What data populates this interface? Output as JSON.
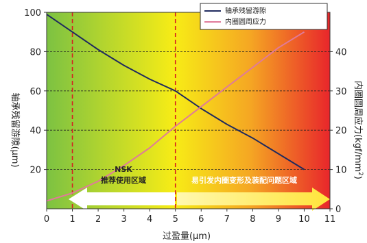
{
  "chart_data": {
    "type": "line",
    "xlabel": "过盈量(μm)",
    "ylabel_left": "轴承残留游隙(μm)",
    "ylabel_right_main": "内圈圆周应力(kgf/mm",
    "ylabel_right_sup": "2",
    "ylabel_right_close": ")",
    "xlim": [
      0,
      11
    ],
    "ylim_left": [
      0,
      100
    ],
    "ylim_right": [
      0,
      50
    ],
    "x_ticks": [
      0,
      1,
      2,
      3,
      4,
      5,
      6,
      7,
      8,
      9,
      10,
      11
    ],
    "y_left_ticks": [
      20,
      40,
      60,
      80,
      100
    ],
    "y_right_ticks": [
      0,
      10,
      20,
      30,
      40
    ],
    "grid": "dashed horizontal",
    "legend_position": "top-right",
    "series": [
      {
        "name": "轴承残留游隙",
        "axis": "left",
        "color": "#1f2a5e",
        "x": [
          0,
          1,
          2,
          3,
          4,
          5,
          6,
          7,
          8,
          9,
          10
        ],
        "y": [
          99,
          90,
          81,
          73,
          66,
          60,
          51,
          43,
          36,
          28,
          20
        ]
      },
      {
        "name": "内圈圆周应力",
        "axis": "right",
        "color": "#e07a9a",
        "x": [
          0,
          1,
          2,
          3,
          4,
          5,
          6,
          7,
          8,
          9,
          10
        ],
        "y": [
          2,
          4,
          7,
          11,
          15.5,
          21,
          26,
          31,
          36,
          41,
          45
        ]
      }
    ],
    "reference_lines_x": [
      1,
      5
    ],
    "reference_line_color": "#d62020",
    "annotations": {
      "recommended_line1": "NSK",
      "recommended_line2": "推荐使用区域",
      "problem_zone": "易引发内圈变形及装配问题区域"
    },
    "background_gradient": [
      "#7cc242",
      "#f7ec16",
      "#f5a623",
      "#e8262b"
    ]
  }
}
